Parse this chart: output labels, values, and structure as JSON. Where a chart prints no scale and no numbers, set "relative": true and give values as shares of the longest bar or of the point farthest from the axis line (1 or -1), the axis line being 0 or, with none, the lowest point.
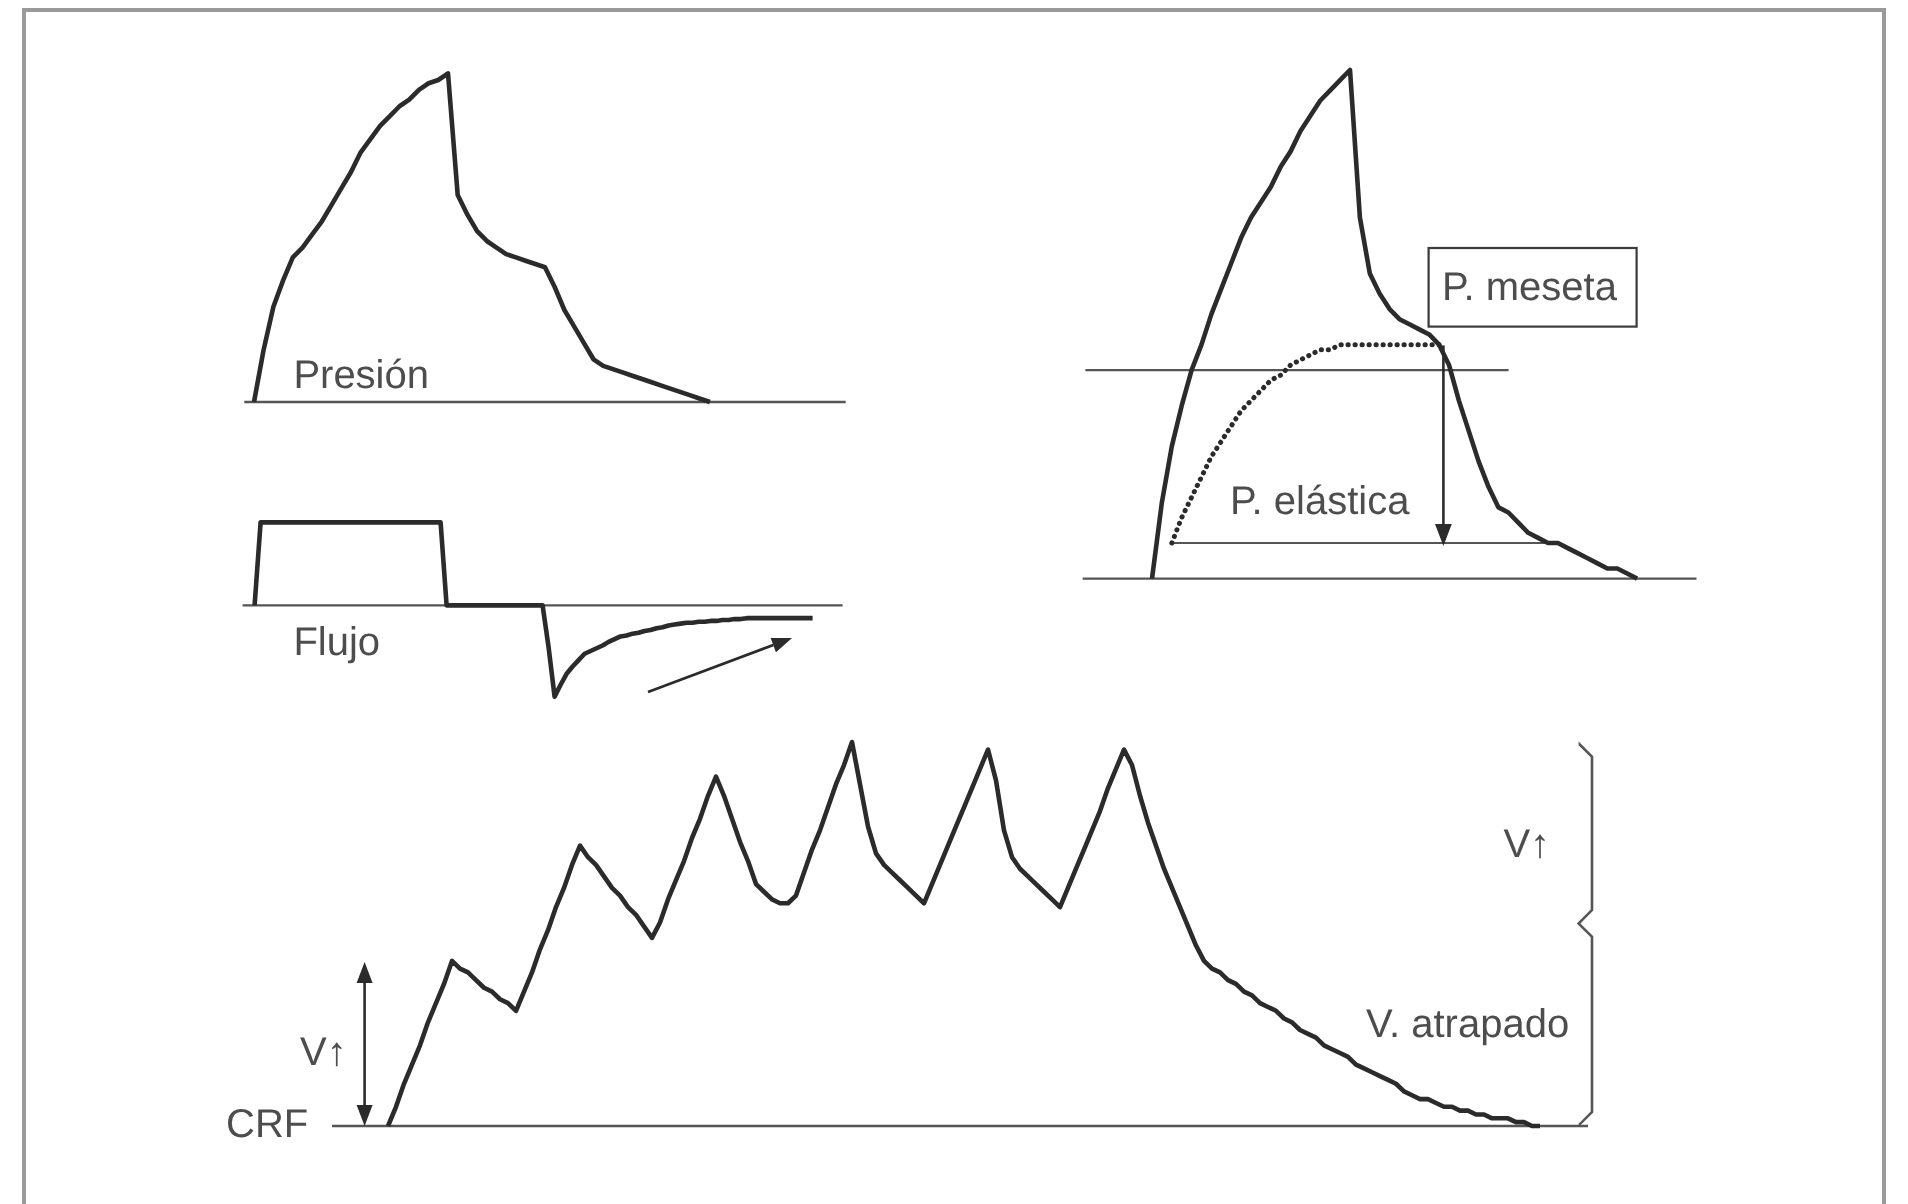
{
  "chart_data": [
    {
      "type": "line",
      "relative": true,
      "title": "Presión",
      "color": "#2b2b2b",
      "categories": [
        null,
        null,
        null,
        null,
        null,
        null,
        null,
        null,
        null,
        null,
        null,
        null,
        null,
        null,
        null,
        null,
        null,
        null,
        null,
        null,
        null,
        null,
        null,
        null,
        null,
        null,
        null,
        null,
        null,
        null,
        null,
        null,
        null,
        null,
        null,
        null,
        null,
        null,
        null,
        null,
        null,
        null,
        null,
        null,
        null,
        null,
        null,
        null,
        null,
        null,
        null,
        null,
        null,
        null,
        null,
        null,
        null,
        null,
        null,
        null,
        null,
        null,
        null
      ],
      "values": [
        null,
        0,
        0.16,
        0.29,
        0.37,
        0.44,
        0.47,
        0.51,
        0.55,
        0.6,
        0.65,
        0.7,
        0.76,
        0.8,
        0.84,
        0.87,
        0.9,
        0.92,
        0.95,
        0.97,
        0.98,
        1,
        0.63,
        0.57,
        0.52,
        0.49,
        0.47,
        0.45,
        0.44,
        0.43,
        0.42,
        0.41,
        0.35,
        0.28,
        0.23,
        0.18,
        0.13,
        0.11,
        0.1,
        0.09,
        0.08,
        0.07,
        0.06,
        0.05,
        0.04,
        0.03,
        0.02,
        0.01,
        0,
        null,
        null,
        null,
        null,
        null,
        null,
        null,
        null,
        null,
        null,
        null,
        null,
        null,
        null
      ]
    },
    {
      "type": "line",
      "relative": true,
      "title": "Flujo",
      "color": "#2b2b2b",
      "categories": [
        null,
        null,
        null,
        null,
        null,
        null,
        null,
        null,
        null,
        null,
        null,
        null,
        null,
        null,
        null,
        null,
        null,
        null,
        null,
        null,
        null,
        null,
        null,
        null,
        null,
        null,
        null,
        null,
        null,
        null,
        null,
        null,
        null,
        null,
        null,
        null,
        null,
        null,
        null,
        null,
        null,
        null,
        null,
        null,
        null,
        null,
        null,
        null,
        null,
        null,
        null,
        null,
        null,
        null,
        null,
        null,
        null,
        null,
        null,
        null,
        null,
        null,
        null,
        null,
        null,
        null,
        null,
        null,
        null,
        null,
        null,
        null,
        null,
        null,
        null,
        null,
        null,
        null,
        null,
        null,
        null,
        null,
        null,
        null,
        null,
        null,
        null,
        null,
        null,
        null,
        null,
        null,
        null,
        null,
        null,
        null,
        null,
        null,
        null,
        null,
        null
      ],
      "values": [
        null,
        null,
        0,
        0.91,
        0.91,
        0.91,
        0.91,
        0.91,
        0.91,
        0.91,
        0.91,
        0.91,
        0.91,
        0.91,
        0.91,
        0.91,
        0.91,
        0.91,
        0.91,
        0.91,
        0.91,
        0.91,
        0.91,
        0.91,
        0.91,
        0.91,
        0.91,
        0.91,
        0.91,
        0.91,
        0.91,
        0.91,
        0.91,
        0.91,
        0,
        0,
        0,
        0,
        0,
        0,
        0,
        0,
        0,
        0,
        0,
        0,
        0,
        0,
        0,
        0,
        0,
        -0.46,
        -1,
        -0.87,
        -0.75,
        -0.67,
        -0.6,
        -0.53,
        -0.5,
        -0.47,
        -0.44,
        -0.4,
        -0.37,
        -0.34,
        -0.33,
        -0.31,
        -0.3,
        -0.28,
        -0.27,
        -0.25,
        -0.24,
        -0.22,
        -0.21,
        -0.2,
        -0.19,
        -0.19,
        -0.18,
        -0.18,
        -0.17,
        -0.17,
        -0.16,
        -0.16,
        -0.15,
        -0.15,
        -0.14,
        -0.14,
        -0.14,
        -0.14,
        -0.14,
        -0.14,
        -0.14,
        -0.14,
        -0.14,
        -0.14,
        -0.14,
        -0.14,
        null,
        null,
        null,
        null,
        null
      ]
    },
    {
      "type": "line",
      "relative": true,
      "categories": [
        null,
        null,
        null,
        null,
        null,
        null,
        null,
        null,
        null,
        null,
        null,
        null,
        null,
        null,
        null,
        null,
        null,
        null,
        null,
        null,
        null,
        null,
        null,
        null,
        null,
        null,
        null,
        null,
        null,
        null,
        null,
        null,
        null,
        null,
        null,
        null,
        null,
        null,
        null,
        null,
        null,
        null,
        null,
        null,
        null,
        null,
        null,
        null,
        null,
        null,
        null,
        null,
        null,
        null,
        null,
        null,
        null,
        null,
        null,
        null,
        null,
        null,
        null
      ],
      "series": [
        {
          "color": "#2b2b2b",
          "values": [
            null,
            null,
            null,
            null,
            null,
            null,
            null,
            0,
            0.15,
            0.26,
            0.34,
            0.41,
            0.46,
            0.52,
            0.57,
            0.62,
            0.67,
            0.71,
            0.74,
            0.77,
            0.81,
            0.84,
            0.88,
            0.91,
            0.94,
            0.96,
            0.98,
            1,
            0.71,
            0.6,
            0.56,
            0.53,
            0.51,
            0.5,
            0.49,
            0.48,
            0.46,
            0.42,
            0.35,
            0.29,
            0.23,
            0.18,
            0.14,
            0.13,
            0.11,
            0.09,
            0.08,
            0.07,
            0.07,
            0.06,
            0.05,
            0.04,
            0.03,
            0.02,
            0.02,
            0.01,
            0,
            null,
            null,
            null,
            null,
            null,
            null
          ]
        },
        {
          "color": "#2b2b2b",
          "line_style": "dotted",
          "values": [
            null,
            null,
            null,
            null,
            null,
            null,
            null,
            null,
            null,
            0.07,
            0.12,
            0.16,
            0.2,
            0.24,
            0.27,
            0.3,
            0.33,
            0.35,
            0.37,
            0.39,
            0.4,
            0.42,
            0.43,
            0.44,
            0.45,
            0.45,
            0.46,
            0.46,
            0.46,
            0.46,
            0.46,
            0.46,
            0.46,
            0.46,
            0.46,
            0.46,
            0.46,
            null,
            null,
            null,
            null,
            null,
            null,
            null,
            null,
            null,
            null,
            null,
            null,
            null,
            null,
            null,
            null,
            null,
            null,
            null,
            null,
            null,
            null,
            null,
            null,
            null,
            null
          ]
        }
      ],
      "ref_lines": [
        {
          "axis": "y",
          "value": 0.41,
          "color": "#555555"
        },
        {
          "axis": "y",
          "value": 0.07,
          "color": "#555555"
        }
      ],
      "annotations": [
        "P. meseta",
        "P. elástica"
      ]
    },
    {
      "type": "line",
      "relative": true,
      "color": "#2b2b2b",
      "categories": [
        null,
        null,
        null,
        null,
        null,
        null,
        null,
        null,
        null,
        null,
        null,
        null,
        null,
        null,
        null,
        null,
        null,
        null,
        null,
        null,
        null,
        null,
        null,
        null,
        null,
        null,
        null,
        null,
        null,
        null,
        null,
        null,
        null,
        null,
        null,
        null,
        null,
        null,
        null,
        null,
        null,
        null,
        null,
        null,
        null,
        null,
        null,
        null,
        null,
        null,
        null,
        null,
        null,
        null,
        null,
        null,
        null,
        null,
        null,
        null,
        null,
        null,
        null,
        null,
        null,
        null,
        null,
        null,
        null,
        null,
        null,
        null,
        null,
        null,
        null,
        null,
        null,
        null,
        null,
        null,
        null,
        null,
        null,
        null,
        null,
        null,
        null,
        null,
        null,
        null,
        null,
        null,
        null,
        null,
        null,
        null,
        null,
        null,
        null,
        null,
        null,
        null,
        null,
        null,
        null,
        null,
        null,
        null,
        null,
        null,
        null,
        null,
        null,
        null,
        null,
        null,
        null,
        null,
        null,
        null,
        null,
        null,
        null,
        null,
        null,
        null,
        null,
        null,
        null,
        null,
        null,
        null,
        null,
        null,
        null,
        null,
        null,
        null,
        null,
        null,
        null,
        null,
        null,
        null,
        null,
        null,
        null,
        null,
        null,
        null,
        null,
        null,
        null,
        null,
        null,
        null,
        null,
        null
      ],
      "values": [
        null,
        null,
        null,
        null,
        null,
        null,
        null,
        0,
        0.05,
        0.11,
        0.16,
        0.21,
        0.27,
        0.32,
        0.37,
        0.43,
        0.41,
        0.4,
        0.38,
        0.36,
        0.35,
        0.33,
        0.32,
        0.3,
        0.35,
        0.4,
        0.46,
        0.51,
        0.57,
        0.62,
        0.68,
        0.73,
        0.7,
        0.68,
        0.65,
        0.62,
        0.6,
        0.57,
        0.55,
        0.52,
        0.49,
        0.53,
        0.59,
        0.64,
        0.69,
        0.75,
        0.8,
        0.86,
        0.91,
        0.86,
        0.8,
        0.74,
        0.69,
        0.63,
        0.61,
        0.59,
        0.58,
        0.58,
        0.6,
        0.66,
        0.72,
        0.77,
        0.83,
        0.89,
        0.94,
        1,
        0.89,
        0.78,
        0.71,
        0.68,
        0.66,
        0.64,
        0.62,
        0.6,
        0.58,
        0.63,
        0.68,
        0.73,
        0.78,
        0.83,
        0.88,
        0.93,
        0.98,
        0.9,
        0.77,
        0.7,
        0.67,
        0.65,
        0.63,
        0.61,
        0.59,
        0.57,
        0.62,
        0.67,
        0.72,
        0.77,
        0.82,
        0.88,
        0.93,
        0.98,
        0.94,
        0.86,
        0.79,
        0.73,
        0.67,
        0.62,
        0.57,
        0.52,
        0.47,
        0.43,
        0.41,
        0.4,
        0.38,
        0.37,
        0.35,
        0.34,
        0.32,
        0.31,
        0.3,
        0.28,
        0.27,
        0.25,
        0.24,
        0.23,
        0.21,
        0.2,
        0.19,
        0.18,
        0.16,
        0.15,
        0.14,
        0.13,
        0.12,
        0.11,
        0.09,
        0.08,
        0.07,
        0.07,
        0.06,
        0.05,
        0.05,
        0.04,
        0.04,
        0.03,
        0.03,
        0.02,
        0.02,
        0.02,
        0.01,
        0.01,
        0,
        0,
        null,
        null,
        null,
        null,
        null,
        null
      ],
      "annotations": [
        "CRF",
        "V↑",
        "V↑",
        "V. atrapado"
      ]
    }
  ]
}
